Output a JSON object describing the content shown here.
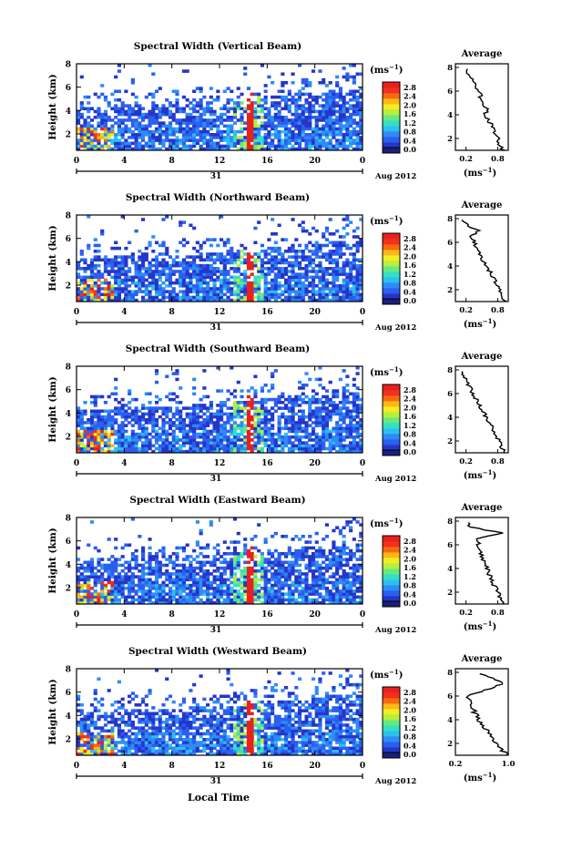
{
  "figure": {
    "xlabel": "Local Time",
    "ylabel": "Height (km)",
    "unit_label": "(ms",
    "unit_power": "−1",
    "date_label": "Aug 2012",
    "day_label": "31",
    "average_title": "Average"
  },
  "colors": {
    "scale": [
      "#1a1f78",
      "#2436c9",
      "#2b5ff0",
      "#2e8cf5",
      "#2cc0ee",
      "#35dfc4",
      "#68e980",
      "#b6ef3e",
      "#f3ee1f",
      "#fbb717",
      "#f66a12",
      "#f2301c",
      "#e8201e"
    ]
  },
  "chart_data": [
    {
      "type": "heatmap",
      "title": "Spectral Width (Vertical Beam)",
      "x_ticks": [
        "0",
        "4",
        "8",
        "12",
        "16",
        "20",
        "0"
      ],
      "y_ticks": [
        "2",
        "4",
        "6",
        "8"
      ],
      "colorbar_ticks": [
        "2.8",
        "2.4",
        "2.0",
        "1.6",
        "1.2",
        "0.8",
        "0.4",
        "0.0"
      ],
      "xlim": [
        0,
        24
      ],
      "ylim": [
        0.6,
        8
      ],
      "average": {
        "x_ticks": [
          "0.2",
          "0.8"
        ],
        "xlim": [
          0.0,
          1.0
        ],
        "heights": [
          1.0,
          1.5,
          2.0,
          2.5,
          3.0,
          3.5,
          4.0,
          4.5,
          5.0,
          5.5,
          6.0,
          6.5,
          7.0,
          7.5,
          8.0
        ],
        "values": [
          0.9,
          0.84,
          0.8,
          0.72,
          0.7,
          0.63,
          0.56,
          0.6,
          0.52,
          0.48,
          0.44,
          0.38,
          0.33,
          0.25,
          0.18
        ]
      }
    },
    {
      "type": "heatmap",
      "title": "Spectral Width (Northward Beam)",
      "x_ticks": [
        "0",
        "4",
        "8",
        "12",
        "16",
        "20",
        "0"
      ],
      "y_ticks": [
        "2",
        "4",
        "6",
        "8"
      ],
      "colorbar_ticks": [
        "2.8",
        "2.4",
        "2.0",
        "1.6",
        "1.2",
        "0.8",
        "0.4",
        "0.0"
      ],
      "xlim": [
        0,
        24
      ],
      "ylim": [
        0.6,
        8
      ],
      "average": {
        "x_ticks": [
          "0.2",
          "0.8"
        ],
        "xlim": [
          0.0,
          1.0
        ],
        "heights": [
          1.0,
          1.5,
          2.0,
          2.5,
          3.0,
          3.5,
          4.0,
          4.5,
          5.0,
          5.5,
          6.0,
          6.5,
          7.0,
          7.5,
          8.0
        ],
        "values": [
          0.93,
          0.88,
          0.83,
          0.76,
          0.72,
          0.66,
          0.58,
          0.52,
          0.47,
          0.4,
          0.36,
          0.3,
          0.42,
          0.22,
          0.12
        ]
      }
    },
    {
      "type": "heatmap",
      "title": "Spectral Width (Southward Beam)",
      "x_ticks": [
        "0",
        "4",
        "8",
        "12",
        "16",
        "20",
        "0"
      ],
      "y_ticks": [
        "2",
        "4",
        "6",
        "8"
      ],
      "colorbar_ticks": [
        "2.8",
        "2.4",
        "2.0",
        "1.6",
        "1.2",
        "0.8",
        "0.4",
        "0.0"
      ],
      "xlim": [
        0,
        24
      ],
      "ylim": [
        0.6,
        8
      ],
      "average": {
        "x_ticks": [
          "0.2",
          "0.8"
        ],
        "xlim": [
          0.0,
          1.0
        ],
        "heights": [
          1.0,
          1.5,
          2.0,
          2.5,
          3.0,
          3.5,
          4.0,
          4.5,
          5.0,
          5.5,
          6.0,
          6.5,
          7.0,
          7.5,
          8.0
        ],
        "values": [
          0.92,
          0.88,
          0.82,
          0.76,
          0.7,
          0.66,
          0.58,
          0.52,
          0.45,
          0.4,
          0.33,
          0.28,
          0.22,
          0.15,
          0.1
        ]
      }
    },
    {
      "type": "heatmap",
      "title": "Spectral Width (Eastward Beam)",
      "x_ticks": [
        "0",
        "4",
        "8",
        "12",
        "16",
        "20",
        "0"
      ],
      "y_ticks": [
        "2",
        "4",
        "6",
        "8"
      ],
      "colorbar_ticks": [
        "2.8",
        "2.4",
        "2.0",
        "1.6",
        "1.2",
        "0.8",
        "0.4",
        "0.0"
      ],
      "xlim": [
        0,
        24
      ],
      "ylim": [
        0.6,
        8
      ],
      "average": {
        "x_ticks": [
          "0.2",
          "0.8"
        ],
        "xlim": [
          0.0,
          1.0
        ],
        "heights": [
          1.0,
          1.5,
          2.0,
          2.5,
          3.0,
          3.5,
          4.0,
          4.5,
          5.0,
          5.5,
          6.0,
          6.5,
          7.0,
          7.5,
          8.0
        ],
        "values": [
          0.9,
          0.86,
          0.8,
          0.74,
          0.68,
          0.64,
          0.6,
          0.56,
          0.5,
          0.46,
          0.44,
          0.4,
          0.88,
          0.3,
          0.2
        ]
      }
    },
    {
      "type": "heatmap",
      "title": "Spectral Width (Westward Beam)",
      "x_ticks": [
        "0",
        "4",
        "8",
        "12",
        "16",
        "20",
        "0"
      ],
      "y_ticks": [
        "2",
        "4",
        "6",
        "8"
      ],
      "colorbar_ticks": [
        "2.8",
        "2.4",
        "2.0",
        "1.6",
        "1.2",
        "0.8",
        "0.4",
        "0.0"
      ],
      "xlim": [
        0,
        24
      ],
      "ylim": [
        0.6,
        8
      ],
      "average": {
        "x_ticks": [
          "0.2",
          "1.0"
        ],
        "xlim": [
          0.2,
          1.0
        ],
        "heights": [
          1.0,
          1.5,
          2.0,
          2.5,
          3.0,
          3.5,
          4.0,
          4.5,
          5.0,
          5.5,
          6.0,
          6.5,
          7.0,
          7.5,
          8.0
        ],
        "values": [
          0.98,
          0.9,
          0.82,
          0.76,
          0.7,
          0.62,
          0.56,
          0.5,
          0.46,
          0.42,
          0.4,
          0.66,
          0.92,
          0.8,
          0.45
        ]
      }
    }
  ]
}
